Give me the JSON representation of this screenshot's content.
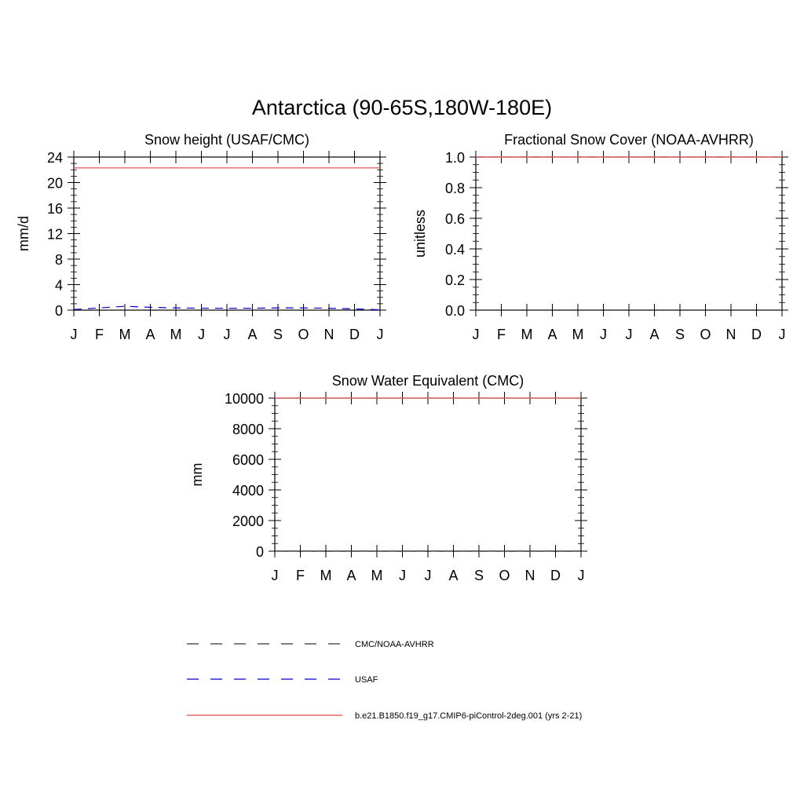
{
  "figure_title": "Antarctica (90-65S,180W-180E)",
  "colors": {
    "model": "#e06666",
    "usaf": "#0000cc",
    "cmc": "#333333",
    "axis": "#000000"
  },
  "chart_data": [
    {
      "type": "line",
      "title": "Snow height (USAF/CMC)",
      "xlabel": "",
      "ylabel": "mm/d",
      "x": [
        "J",
        "F",
        "M",
        "A",
        "M",
        "J",
        "J",
        "A",
        "S",
        "O",
        "N",
        "D",
        "J"
      ],
      "ylim": [
        0,
        24
      ],
      "yticks": [
        0,
        4,
        8,
        12,
        16,
        20,
        24
      ],
      "ytick_labels": [
        "0",
        "4",
        "8",
        "12",
        "16",
        "20",
        "24"
      ],
      "series": [
        {
          "key": "model",
          "values": [
            22.3,
            22.3,
            22.3,
            22.3,
            22.3,
            22.3,
            22.3,
            22.3,
            22.3,
            22.3,
            22.3,
            22.3,
            22.3
          ]
        },
        {
          "key": "usaf",
          "values": [
            0.1,
            0.35,
            0.6,
            0.45,
            0.35,
            0.3,
            0.3,
            0.3,
            0.35,
            0.35,
            0.3,
            0.2,
            0.05
          ]
        }
      ]
    },
    {
      "type": "line",
      "title": "Fractional Snow Cover (NOAA-AVHRR)",
      "xlabel": "",
      "ylabel": "unitless",
      "x": [
        "J",
        "F",
        "M",
        "A",
        "M",
        "J",
        "J",
        "A",
        "S",
        "O",
        "N",
        "D",
        "J"
      ],
      "ylim": [
        0,
        1.0
      ],
      "yticks": [
        0,
        0.2,
        0.4,
        0.6,
        0.8,
        1.0
      ],
      "ytick_labels": [
        "0.0",
        "0.2",
        "0.4",
        "0.6",
        "0.8",
        "1.0"
      ],
      "series": [
        {
          "key": "cmc",
          "values": [
            1.0,
            1.0,
            1.0,
            1.0,
            1.0,
            1.0,
            1.0,
            1.0,
            1.0,
            1.0,
            1.0,
            1.0,
            1.0
          ]
        },
        {
          "key": "model",
          "values": [
            1.0,
            1.0,
            1.0,
            1.0,
            1.0,
            1.0,
            1.0,
            1.0,
            1.0,
            1.0,
            1.0,
            1.0,
            1.0
          ]
        }
      ]
    },
    {
      "type": "line",
      "title": "Snow Water Equivalent (CMC)",
      "xlabel": "",
      "ylabel": "mm",
      "x": [
        "J",
        "F",
        "M",
        "A",
        "M",
        "J",
        "J",
        "A",
        "S",
        "O",
        "N",
        "D",
        "J"
      ],
      "ylim": [
        0,
        10000
      ],
      "yticks": [
        0,
        2000,
        4000,
        6000,
        8000,
        10000
      ],
      "ytick_labels": [
        "0",
        "2000",
        "4000",
        "6000",
        "8000",
        "10000"
      ],
      "series": [
        {
          "key": "cmc",
          "values": [
            5,
            5,
            5,
            5,
            5,
            5,
            5,
            5,
            5,
            5,
            5,
            5,
            5
          ]
        },
        {
          "key": "model",
          "values": [
            10000,
            10000,
            10000,
            10000,
            10000,
            10000,
            10000,
            10000,
            10000,
            10000,
            10000,
            10000,
            10000
          ]
        }
      ]
    }
  ],
  "legend": {
    "placement": "bottom",
    "items": [
      {
        "key": "cmc",
        "label": "CMC/NOAA-AVHRR",
        "style": "dashed"
      },
      {
        "key": "usaf",
        "label": "USAF",
        "style": "dashed"
      },
      {
        "key": "model",
        "label": "b.e21.B1850.f19_g17.CMIP6-piControl-2deg.001 (yrs 2-21)",
        "style": "solid"
      }
    ]
  }
}
